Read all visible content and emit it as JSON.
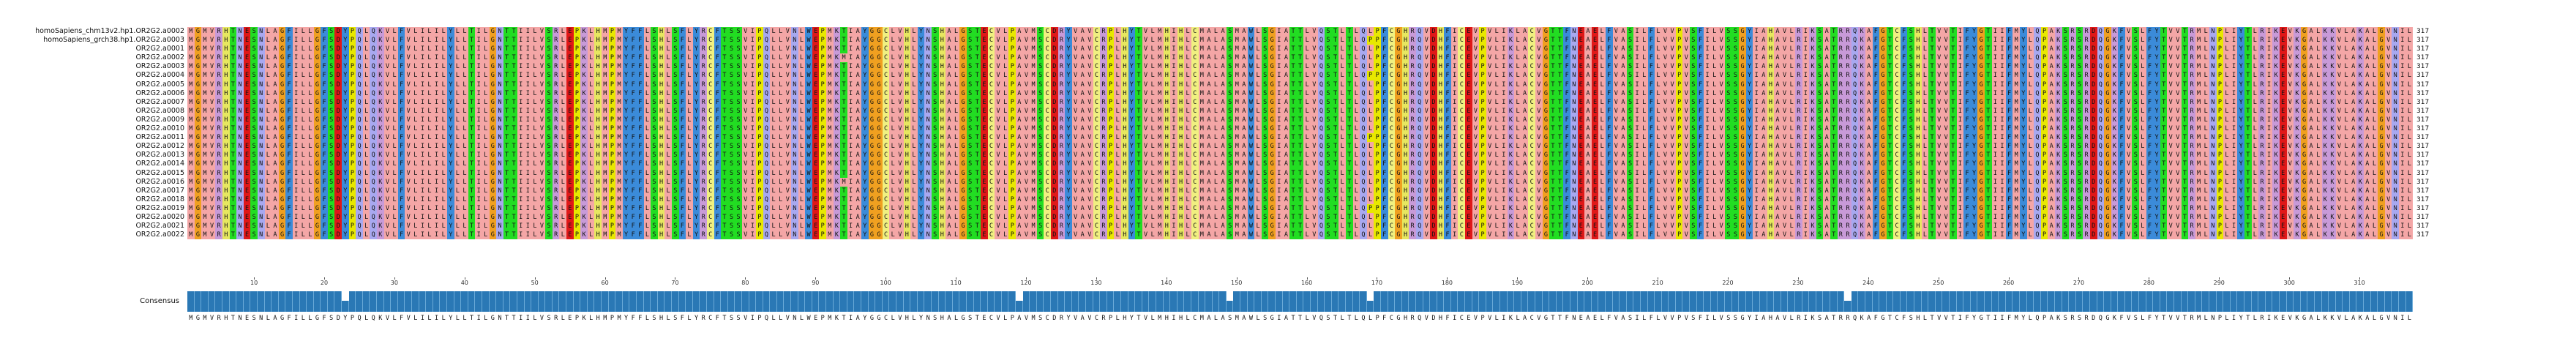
{
  "sequence_names": [
    "homoSapiens_chm13v2.hp1.OR2G2.a0002",
    "homoSapiens_grch38.hp1.OR2G2.a0003",
    "OR2G2.a0001",
    "OR2G2.a0002",
    "OR2G2.a0003",
    "OR2G2.a0004",
    "OR2G2.a0005",
    "OR2G2.a0006",
    "OR2G2.a0007",
    "OR2G2.a0008",
    "OR2G2.a0009",
    "OR2G2.a0010",
    "OR2G2.a0011",
    "OR2G2.a0012",
    "OR2G2.a0013",
    "OR2G2.a0014",
    "OR2G2.a0015",
    "OR2G2.a0016",
    "OR2G2.a0017",
    "OR2G2.a0018",
    "OR2G2.a0019",
    "OR2G2.a0020",
    "OR2G2.a0021",
    "OR2G2.a0022"
  ],
  "sequence_length": "317",
  "consensus_label": "Consensus",
  "consensus_sequence": "MGMVRHTNESNLAGFILLGFSDYPQLQKVLFVLILILYLLTILGNTTIILVSRLEPKLHMPMYFFLSHLSFLYRCFTSSVIPQLLVNLWEPMKTIAYGGCLVHLYNSHALGSTECVLPAVMSCDRYVAVCRPLHYTVLMHIHLCMALASMAWLSGIATTLVQSTLTLQLPFCGHRQVDHFICEVPVLIKLACVGTTFNEAELFVASILFLVVPVSFILVSSGYIAHAVLRIKSATRRQKAFGTCFSHLTVVTIFYGTIIFMYLQPAKSRSRDQGKFVSLFYTVVTRMLNPLIYTLRIKEVKGALKKVLAKALGVNIL",
  "tick_labels": [
    "10",
    "20",
    "30",
    "40",
    "50",
    "60",
    "70",
    "80",
    "90",
    "100",
    "110",
    "120",
    "130",
    "140",
    "150",
    "160",
    "170",
    "180",
    "190",
    "200",
    "210",
    "220",
    "230",
    "240",
    "250",
    "260",
    "270",
    "280",
    "290",
    "300",
    "310"
  ],
  "variants": [
    {
      "row": 0,
      "pos": 22,
      "aa": "Y"
    },
    {
      "row": 1,
      "pos": 22,
      "aa": "Y"
    },
    {
      "row": 2,
      "pos": 22,
      "aa": "Y"
    },
    {
      "row": 5,
      "pos": 22,
      "aa": "Y"
    },
    {
      "row": 6,
      "pos": 22,
      "aa": "Y"
    },
    {
      "row": 8,
      "pos": 22,
      "aa": "Y"
    },
    {
      "row": 20,
      "pos": 22,
      "aa": "Y"
    },
    {
      "row": 3,
      "pos": 93,
      "aa": "M"
    },
    {
      "row": 17,
      "pos": 93,
      "aa": "M"
    },
    {
      "row": 1,
      "pos": 168,
      "aa": "P"
    },
    {
      "row": 5,
      "pos": 168,
      "aa": "P"
    },
    {
      "row": 12,
      "pos": 168,
      "aa": "P"
    },
    {
      "row": 20,
      "pos": 168,
      "aa": "P"
    }
  ],
  "conservation_dips": [
    22,
    118,
    148,
    168,
    236
  ],
  "colors": {
    "hydrophobic": "#f4a6a6",
    "aromatic": "#3b8bd9",
    "positive": "#c89ad8",
    "negative": "#e01818",
    "polar": "#22dd22",
    "glycine": "#f0a020",
    "proline": "#e8e800",
    "cysteine": "#f0f080",
    "amide": "#a8a8f0",
    "histidine": "#e7e760",
    "consensus_bar": "#2a78b5"
  }
}
